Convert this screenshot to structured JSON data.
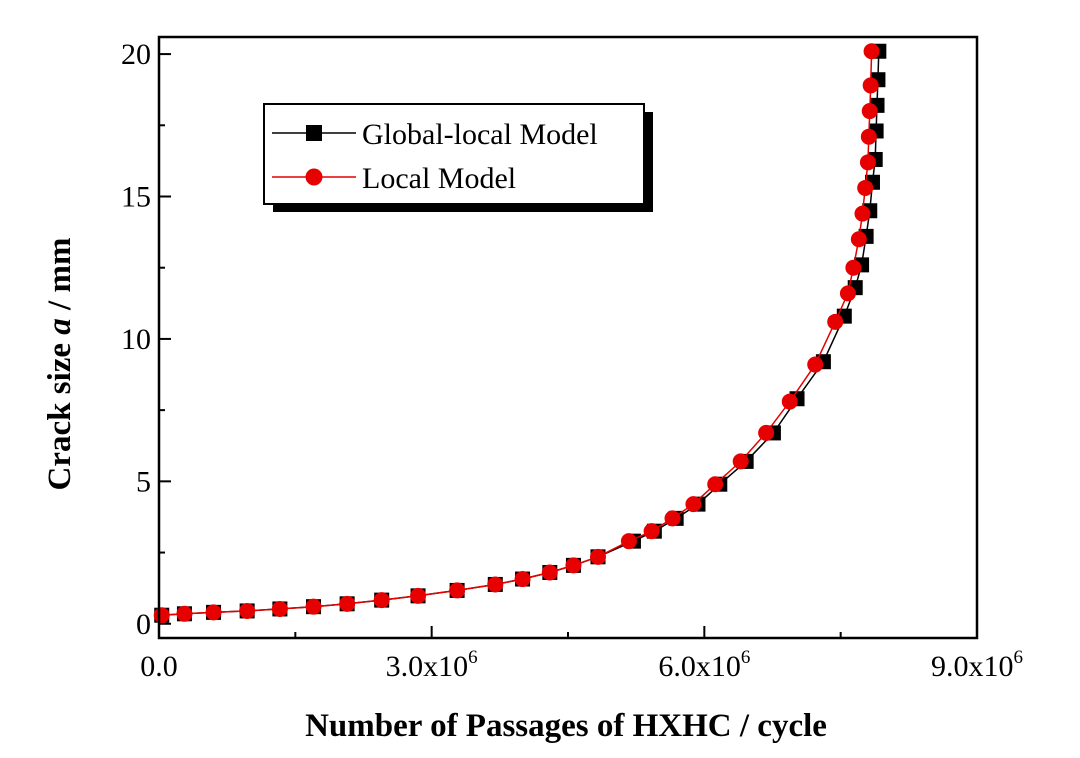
{
  "chart_data": {
    "type": "line",
    "title": "",
    "xlabel": "Number of Passages of HXHC / cycle",
    "ylabel_parts": [
      "Crack size ",
      "a",
      " / mm"
    ],
    "xlim": [
      0,
      9000000
    ],
    "ylim": [
      -0.5,
      20.6
    ],
    "x_ticks": [
      {
        "value": 0,
        "mantissa": "0.0",
        "exp": ""
      },
      {
        "value": 3000000,
        "mantissa": "3.0x10",
        "exp": "6"
      },
      {
        "value": 6000000,
        "mantissa": "6.0x10",
        "exp": "6"
      },
      {
        "value": 9000000,
        "mantissa": "9.0x10",
        "exp": "6"
      }
    ],
    "x_minor_ticks": [
      1500000,
      4500000,
      7500000
    ],
    "y_ticks": [
      0,
      5,
      10,
      15,
      20
    ],
    "y_minor_ticks": [
      2.5,
      7.5,
      12.5,
      17.5
    ],
    "legend_placement": "top-left",
    "series": [
      {
        "name": "Global-local Model",
        "color": "#000000",
        "marker": "square",
        "x": [
          30000,
          280000,
          600000,
          970000,
          1330000,
          1700000,
          2070000,
          2450000,
          2850000,
          3280000,
          3700000,
          4000000,
          4300000,
          4560000,
          4830000,
          5220000,
          5450000,
          5690000,
          5930000,
          6170000,
          6460000,
          6760000,
          7020000,
          7310000,
          7540000,
          7660000,
          7730000,
          7780000,
          7820000,
          7850000,
          7880000,
          7890000,
          7900000,
          7910000,
          7920000
        ],
        "y": [
          0.3,
          0.35,
          0.4,
          0.45,
          0.52,
          0.6,
          0.7,
          0.83,
          0.98,
          1.17,
          1.38,
          1.57,
          1.8,
          2.05,
          2.35,
          2.9,
          3.25,
          3.7,
          4.2,
          4.9,
          5.7,
          6.7,
          7.9,
          9.2,
          10.8,
          11.8,
          12.6,
          13.6,
          14.5,
          15.5,
          16.3,
          17.3,
          18.2,
          19.1,
          20.1
        ]
      },
      {
        "name": "Local Model",
        "color": "#e60000",
        "marker": "circle",
        "x": [
          30000,
          280000,
          600000,
          970000,
          1330000,
          1700000,
          2070000,
          2450000,
          2850000,
          3280000,
          3700000,
          4000000,
          4300000,
          4560000,
          4830000,
          5170000,
          5420000,
          5650000,
          5880000,
          6120000,
          6400000,
          6680000,
          6940000,
          7220000,
          7440000,
          7580000,
          7640000,
          7700000,
          7740000,
          7770000,
          7800000,
          7810000,
          7820000,
          7830000,
          7840000
        ],
        "y": [
          0.3,
          0.35,
          0.4,
          0.45,
          0.52,
          0.6,
          0.7,
          0.83,
          0.98,
          1.17,
          1.38,
          1.57,
          1.8,
          2.05,
          2.35,
          2.9,
          3.25,
          3.7,
          4.2,
          4.9,
          5.7,
          6.7,
          7.8,
          9.1,
          10.6,
          11.6,
          12.5,
          13.5,
          14.4,
          15.3,
          16.2,
          17.1,
          18.0,
          18.9,
          20.1
        ]
      }
    ]
  }
}
